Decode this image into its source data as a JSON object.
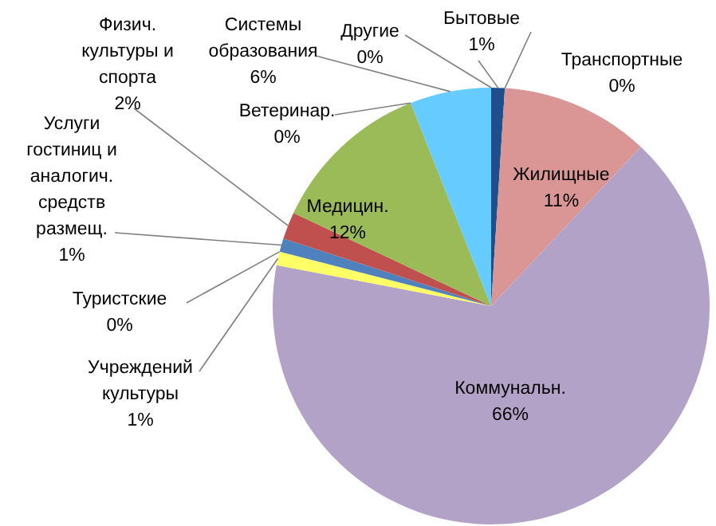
{
  "chart_data": {
    "type": "pie",
    "categories": [
      "Бытовые",
      "Транспортные",
      "Жилищные",
      "Коммунальн.",
      "Учреждений культуры",
      "Туристские",
      "Услуги гостиниц и аналогич. средств размещ.",
      "Физич. культуры и спорта",
      "Медицин.",
      "Ветеринар.",
      "Системы образования",
      "Другие"
    ],
    "values": [
      1,
      0,
      11,
      66,
      1,
      0,
      1,
      2,
      12,
      0,
      6,
      0
    ],
    "colors": [
      "#1f4e8c",
      "#c0504d",
      "#d99694",
      "#b3a2c7",
      "#ffff66",
      "#f79646",
      "#4f81bd",
      "#c0504d",
      "#9bbb59",
      "#8064a2",
      "#66ccff",
      "#f79646"
    ],
    "value_labels": [
      "1%",
      "0%",
      "11%",
      "66%",
      "1%",
      "0%",
      "1%",
      "2%",
      "12%",
      "0%",
      "6%",
      "0%"
    ]
  }
}
